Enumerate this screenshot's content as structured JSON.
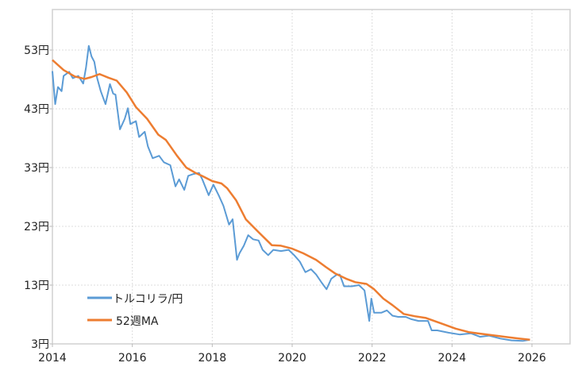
{
  "chart_data": {
    "type": "line",
    "title": "",
    "xlabel": "",
    "ylabel": "",
    "xlim": [
      2014,
      2027
    ],
    "ylim": [
      3,
      60
    ],
    "grid": true,
    "legend_position": "bottom-left",
    "x_ticks": [
      2014,
      2016,
      2018,
      2020,
      2022,
      2024,
      2026
    ],
    "x_tick_labels": [
      "2014",
      "2016",
      "2018",
      "2020",
      "2022",
      "2024",
      "2026"
    ],
    "y_ticks": [
      3,
      13,
      23,
      33,
      43,
      53
    ],
    "y_tick_labels": [
      "3円",
      "13円",
      "23円",
      "33円",
      "43円",
      "53円"
    ],
    "series": [
      {
        "name": "トルコリラ/円",
        "color": "#5b9bd5",
        "x": [
          2014.0,
          2014.07,
          2014.14,
          2014.23,
          2014.28,
          2014.42,
          2014.51,
          2014.65,
          2014.77,
          2014.84,
          2014.91,
          2014.98,
          2015.05,
          2015.12,
          2015.21,
          2015.33,
          2015.44,
          2015.52,
          2015.58,
          2015.69,
          2015.81,
          2015.89,
          2015.95,
          2016.09,
          2016.17,
          2016.31,
          2016.39,
          2016.51,
          2016.67,
          2016.79,
          2016.95,
          2017.08,
          2017.17,
          2017.3,
          2017.4,
          2017.53,
          2017.67,
          2017.75,
          2017.91,
          2018.03,
          2018.16,
          2018.28,
          2018.42,
          2018.51,
          2018.62,
          2018.68,
          2018.79,
          2018.9,
          2019.02,
          2019.16,
          2019.26,
          2019.4,
          2019.53,
          2019.72,
          2019.91,
          2020.05,
          2020.19,
          2020.33,
          2020.47,
          2020.6,
          2020.74,
          2020.86,
          2020.98,
          2021.12,
          2021.19,
          2021.3,
          2021.49,
          2021.67,
          2021.81,
          2021.93,
          2021.98,
          2022.05,
          2022.23,
          2022.37,
          2022.51,
          2022.65,
          2022.84,
          2022.98,
          2023.16,
          2023.4,
          2023.49,
          2023.63,
          2023.91,
          2024.19,
          2024.47,
          2024.7,
          2024.93,
          2025.21,
          2025.49,
          2025.77,
          2025.95
        ],
        "values": [
          49.4,
          43.8,
          46.7,
          46.0,
          48.6,
          49.3,
          48.2,
          48.6,
          47.3,
          50.0,
          53.7,
          51.9,
          51.0,
          48.2,
          46.0,
          43.8,
          47.2,
          45.6,
          45.4,
          39.5,
          41.3,
          43.1,
          40.4,
          40.9,
          38.2,
          39.1,
          36.6,
          34.6,
          35.0,
          33.9,
          33.4,
          29.8,
          31.0,
          29.2,
          31.6,
          31.9,
          32.1,
          31.0,
          28.3,
          30.1,
          28.3,
          26.5,
          23.3,
          24.2,
          17.3,
          18.4,
          19.7,
          21.5,
          20.8,
          20.6,
          19.0,
          18.1,
          19.0,
          18.8,
          19.0,
          18.1,
          17.0,
          15.2,
          15.7,
          14.8,
          13.4,
          12.3,
          14.1,
          14.8,
          14.8,
          12.8,
          12.8,
          13.0,
          12.1,
          6.9,
          10.7,
          8.3,
          8.3,
          8.7,
          7.8,
          7.6,
          7.6,
          7.2,
          6.9,
          6.9,
          5.3,
          5.3,
          4.9,
          4.6,
          4.8,
          4.2,
          4.4,
          3.9,
          3.6,
          3.5,
          3.7
        ]
      },
      {
        "name": "52週MA",
        "color": "#ed7d31",
        "x": [
          2014.0,
          2014.28,
          2014.56,
          2014.81,
          2014.98,
          2015.18,
          2015.4,
          2015.61,
          2015.86,
          2016.09,
          2016.37,
          2016.65,
          2016.84,
          2017.12,
          2017.35,
          2017.58,
          2017.77,
          2018.0,
          2018.23,
          2018.37,
          2018.6,
          2018.84,
          2019.16,
          2019.49,
          2019.72,
          2020.0,
          2020.28,
          2020.6,
          2020.84,
          2021.07,
          2021.35,
          2021.58,
          2021.86,
          2022.05,
          2022.28,
          2022.51,
          2022.79,
          2023.07,
          2023.35,
          2023.72,
          2024.09,
          2024.42,
          2024.74,
          2025.21,
          2025.67,
          2025.95
        ],
        "values": [
          51.3,
          49.6,
          48.5,
          48.1,
          48.4,
          48.9,
          48.3,
          47.8,
          45.8,
          43.3,
          41.3,
          38.6,
          37.7,
          35.0,
          33.0,
          32.1,
          31.5,
          30.7,
          30.3,
          29.5,
          27.4,
          24.2,
          22.0,
          19.8,
          19.7,
          19.2,
          18.4,
          17.3,
          16.1,
          15.0,
          14.1,
          13.5,
          13.2,
          12.3,
          10.7,
          9.6,
          8.1,
          7.7,
          7.4,
          6.5,
          5.6,
          5.0,
          4.7,
          4.3,
          3.9,
          3.7
        ]
      }
    ]
  }
}
